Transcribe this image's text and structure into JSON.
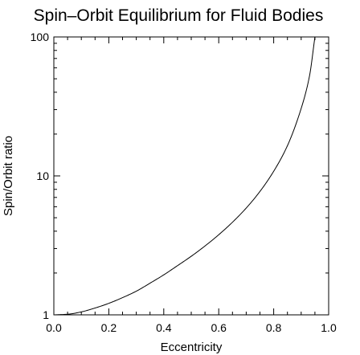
{
  "chart_data": {
    "type": "line",
    "title": "Spin–Orbit Equilibrium for Fluid Bodies",
    "xlabel": "Eccentricity",
    "ylabel": "Spin/Orbit ratio",
    "xlim": [
      0.0,
      1.0
    ],
    "ylim": [
      1,
      100
    ],
    "yscale": "log",
    "grid": false,
    "x_ticks": [
      "0.0",
      "0.2",
      "0.4",
      "0.6",
      "0.8",
      "1.0"
    ],
    "y_ticks": [
      "1",
      "10",
      "100"
    ],
    "series": [
      {
        "x": [
          0.0,
          0.05,
          0.1,
          0.15,
          0.2,
          0.25,
          0.3,
          0.35,
          0.4,
          0.45,
          0.5,
          0.55,
          0.6,
          0.65,
          0.7,
          0.75,
          0.8,
          0.85,
          0.9,
          0.93,
          0.95
        ],
        "y": [
          1.0,
          1.01,
          1.05,
          1.12,
          1.21,
          1.33,
          1.48,
          1.69,
          1.94,
          2.26,
          2.64,
          3.13,
          3.77,
          4.64,
          5.87,
          7.73,
          10.8,
          16.5,
          30.6,
          52.0,
          100.0
        ]
      }
    ],
    "line_color": "#000000"
  }
}
